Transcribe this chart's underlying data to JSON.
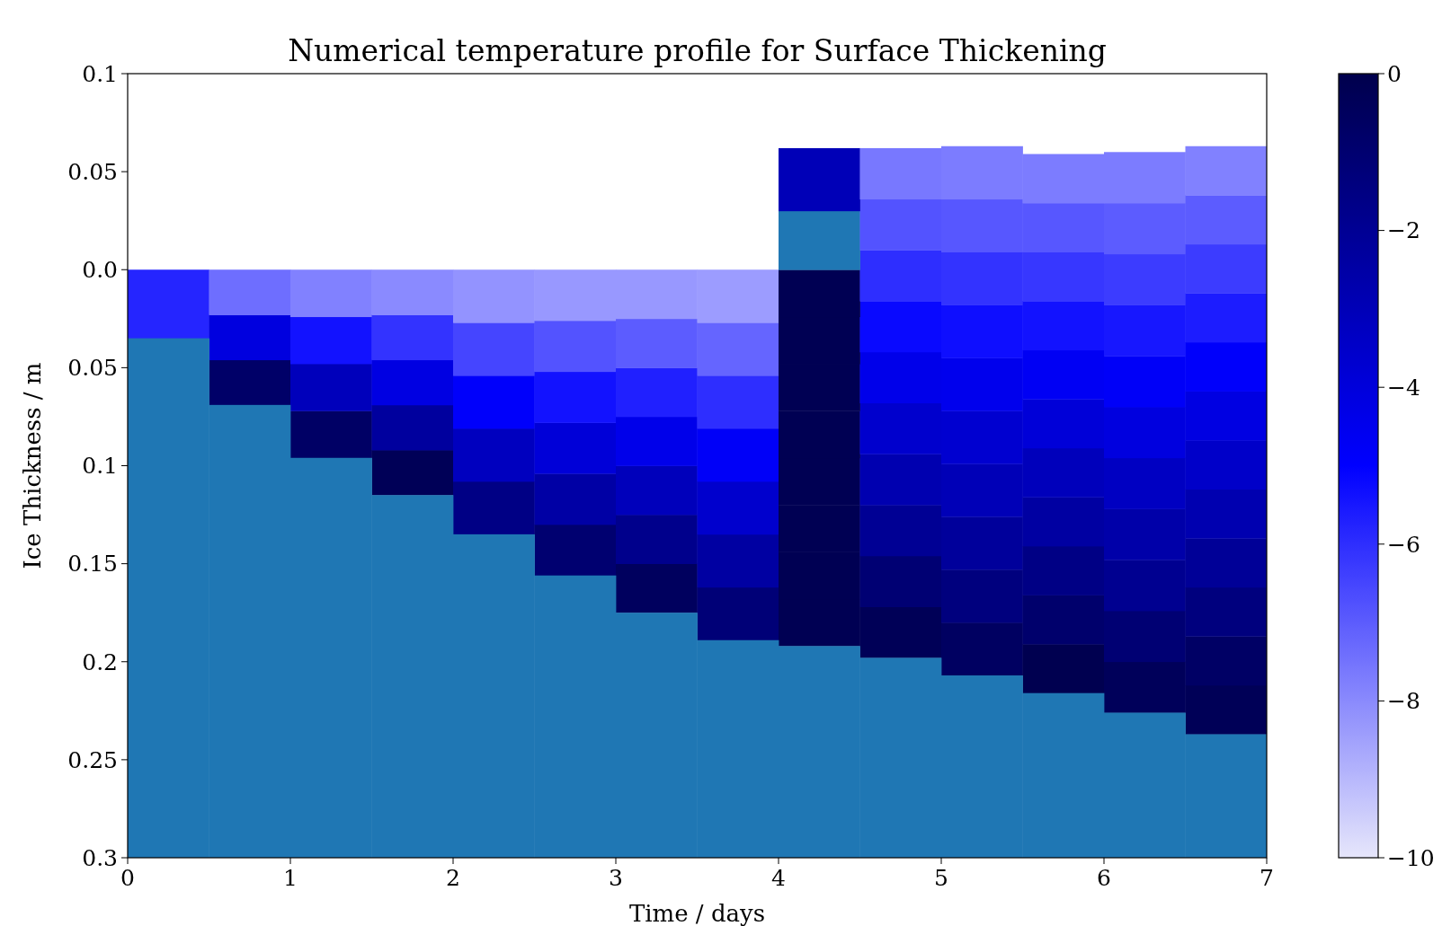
{
  "chart_data": {
    "type": "bar",
    "title": "Numerical temperature profile for Surface Thickening",
    "xlabel": "Time / days",
    "ylabel": "Ice Thickness / m",
    "grid": false,
    "xlim": [
      0,
      7
    ],
    "xticks": [
      0,
      1,
      2,
      3,
      4,
      5,
      6,
      7
    ],
    "ylim": [
      -0.3,
      0.1
    ],
    "yticks": [
      0.1,
      0.05,
      {
        "value": 0,
        "label": "0.0"
      },
      {
        "value": -0.05,
        "label": "0.05"
      },
      {
        "value": -0.1,
        "label": "0.1"
      },
      {
        "value": -0.15,
        "label": "0.15"
      },
      {
        "value": -0.2,
        "label": "0.2"
      },
      {
        "value": -0.25,
        "label": "0.25"
      },
      {
        "value": -0.3,
        "label": "0.3"
      }
    ],
    "clim": [
      -10,
      0
    ],
    "cticks": [
      0,
      {
        "value": -2,
        "label": "−2"
      },
      {
        "value": -4,
        "label": "−4"
      },
      {
        "value": -6,
        "label": "−6"
      },
      {
        "value": -8,
        "label": "−8"
      },
      {
        "value": -10,
        "label": "−10"
      }
    ],
    "x": [
      0.25,
      0.75,
      1.25,
      1.75,
      2.25,
      2.75,
      3.25,
      3.75,
      4.25,
      4.75,
      5.25,
      5.75,
      6.25,
      6.75
    ],
    "series": [
      {
        "base": [
          -0.035,
          -0.069,
          -0.096,
          -0.115,
          -0.135,
          -0.156,
          -0.175,
          -0.189,
          -0.192,
          -0.198,
          -0.207,
          -0.216,
          -0.226,
          -0.237
        ],
        "values": [
          0.035,
          0.023,
          0.024,
          0.023,
          0.027,
          0.026,
          0.025,
          0.027,
          0.024,
          0.026,
          0.027,
          0.025,
          0.026,
          0.025
        ],
        "colors": [
          "#2525ff",
          "#000068",
          "#000065",
          "#000057",
          "#000085",
          "#000070",
          "#00005e",
          "#000077",
          "#000053",
          "#000057",
          "#000061",
          "#000050",
          "#00005a",
          "#000057"
        ]
      },
      {
        "base": [
          null,
          -0.046,
          -0.072,
          -0.092,
          -0.108,
          -0.13,
          -0.15,
          -0.162,
          -0.168,
          -0.172,
          -0.18,
          -0.191,
          -0.2,
          -0.212
        ],
        "values": [
          null,
          0.023,
          0.024,
          0.023,
          0.027,
          0.026,
          0.025,
          0.027,
          0.024,
          0.026,
          0.027,
          0.025,
          0.026,
          0.025
        ],
        "colors": [
          null,
          "#0000df",
          "#0000bb",
          "#00009e",
          "#0000bf",
          "#0000a5",
          "#00008c",
          "#0000a2",
          "#000053",
          "#000073",
          "#00007e",
          "#00006c",
          "#000073",
          "#000065"
        ]
      },
      {
        "base": [
          null,
          -0.023,
          -0.048,
          -0.069,
          -0.081,
          -0.104,
          -0.125,
          -0.135,
          -0.144,
          -0.146,
          -0.153,
          -0.166,
          -0.174,
          -0.187
        ],
        "values": [
          null,
          0.023,
          0.024,
          0.023,
          0.027,
          0.026,
          0.025,
          0.027,
          0.024,
          0.026,
          0.027,
          0.025,
          0.026,
          0.025
        ],
        "colors": [
          null,
          "#6e6eff",
          "#1212ff",
          "#0000e2",
          "#0000fb",
          "#0000d8",
          "#0000bb",
          "#0000cd",
          "#000053",
          "#000094",
          "#00009b",
          "#000085",
          "#000090",
          "#00007e"
        ]
      },
      {
        "base": [
          null,
          null,
          -0.024,
          -0.046,
          -0.054,
          -0.078,
          -0.1,
          -0.108,
          -0.12,
          -0.12,
          -0.126,
          -0.141,
          -0.148,
          -0.162
        ],
        "values": [
          null,
          null,
          0.024,
          0.023,
          0.027,
          0.026,
          0.025,
          0.027,
          0.024,
          0.026,
          0.027,
          0.025,
          0.026,
          0.025
        ],
        "colors": [
          null,
          null,
          "#8181ff",
          "#3333ff",
          "#4545ff",
          "#1212ff",
          "#0000ea",
          "#0000f8",
          "#000053",
          "#0000b0",
          "#0000b7",
          "#0000a2",
          "#0000a9",
          "#000097"
        ]
      },
      {
        "base": [
          null,
          null,
          null,
          -0.023,
          -0.027,
          -0.052,
          -0.075,
          -0.081,
          -0.096,
          -0.094,
          -0.099,
          -0.116,
          -0.122,
          -0.137
        ],
        "values": [
          null,
          null,
          null,
          0.023,
          0.027,
          0.026,
          0.025,
          0.027,
          0.024,
          0.026,
          0.027,
          0.025,
          0.026,
          0.025
        ],
        "colors": [
          null,
          null,
          null,
          "#8a8aff",
          "#9393ff",
          "#5353ff",
          "#2020ff",
          "#2e2eff",
          "#000053",
          "#0000cd",
          "#0000d0",
          "#0000bb",
          "#0000c2",
          "#0000b0"
        ]
      },
      {
        "base": [
          null,
          null,
          null,
          null,
          null,
          -0.026,
          -0.05,
          -0.054,
          -0.072,
          -0.068,
          -0.072,
          -0.091,
          -0.096,
          -0.112
        ],
        "values": [
          null,
          null,
          null,
          null,
          null,
          0.026,
          0.025,
          0.027,
          0.024,
          0.026,
          0.027,
          0.025,
          0.026,
          0.025
        ],
        "colors": [
          null,
          null,
          null,
          null,
          null,
          "#9898ff",
          "#5c5cff",
          "#6565ff",
          "#000053",
          "#0000ea",
          "#0000ed",
          "#0000d8",
          "#0000df",
          "#0000c9"
        ]
      },
      {
        "base": [
          null,
          null,
          null,
          null,
          null,
          null,
          -0.025,
          -0.027,
          -0.048,
          -0.042,
          -0.045,
          -0.066,
          -0.07,
          -0.087
        ],
        "values": [
          null,
          null,
          null,
          null,
          null,
          null,
          0.025,
          0.027,
          0.024,
          0.026,
          0.027,
          0.025,
          0.026,
          0.025
        ],
        "colors": [
          null,
          null,
          null,
          null,
          null,
          null,
          "#9898ff",
          "#9c9cff",
          "#000053",
          "#0909ff",
          "#0e0eff",
          "#0000f4",
          "#0000f8",
          "#0000e2"
        ]
      },
      {
        "base": [
          null,
          null,
          null,
          null,
          null,
          null,
          null,
          null,
          -0.024,
          -0.016,
          -0.018,
          -0.041,
          -0.044,
          -0.062
        ],
        "values": [
          null,
          null,
          null,
          null,
          null,
          null,
          null,
          null,
          0.024,
          0.026,
          0.027,
          0.025,
          0.026,
          0.025
        ],
        "colors": [
          null,
          null,
          null,
          null,
          null,
          null,
          null,
          null,
          "#000053",
          "#2e2eff",
          "#3333ff",
          "#1212ff",
          "#1717ff",
          "#0000fb"
        ]
      },
      {
        "base": [
          null,
          null,
          null,
          null,
          null,
          null,
          null,
          null,
          0,
          0.01,
          0.009,
          -0.016,
          -0.018,
          -0.037
        ],
        "values": [
          null,
          null,
          null,
          null,
          null,
          null,
          null,
          null,
          0.03,
          0.026,
          0.027,
          0.025,
          0.026,
          0.025
        ],
        "colors": [
          null,
          null,
          null,
          null,
          null,
          null,
          null,
          null,
          "#1f77b4",
          "#5353ff",
          "#5757ff",
          "#3737ff",
          "#3c3cff",
          "#1c1cff"
        ]
      },
      {
        "base": [
          null,
          null,
          null,
          null,
          null,
          null,
          null,
          null,
          0.03,
          0.036,
          0.036,
          0.009,
          0.008,
          -0.012
        ],
        "values": [
          null,
          null,
          null,
          null,
          null,
          null,
          null,
          null,
          0.032,
          0.026,
          0.027,
          0.025,
          0.026,
          0.025
        ],
        "colors": [
          null,
          null,
          null,
          null,
          null,
          null,
          null,
          null,
          "#0000b7",
          "#7878ff",
          "#7c7cff",
          "#5757ff",
          "#5c5cff",
          "#3c3cff"
        ]
      },
      {
        "base": [
          null,
          null,
          null,
          null,
          null,
          null,
          null,
          null,
          null,
          null,
          null,
          0.034,
          0.034,
          0.013
        ],
        "values": [
          null,
          null,
          null,
          null,
          null,
          null,
          null,
          null,
          null,
          null,
          null,
          0.025,
          0.026,
          0.025
        ],
        "colors": [
          null,
          null,
          null,
          null,
          null,
          null,
          null,
          null,
          null,
          null,
          null,
          "#7c7cff",
          "#7c7cff",
          "#5c5cff"
        ]
      },
      {
        "base": [
          null,
          null,
          null,
          null,
          null,
          null,
          null,
          null,
          null,
          null,
          null,
          null,
          null,
          0.038
        ],
        "values": [
          null,
          null,
          null,
          null,
          null,
          null,
          null,
          null,
          null,
          null,
          null,
          null,
          null,
          0.025
        ],
        "colors": [
          null,
          null,
          null,
          null,
          null,
          null,
          null,
          null,
          null,
          null,
          null,
          null,
          null,
          "#8181ff"
        ]
      },
      {
        "color": "#1f77b4",
        "base": [
          -0.3,
          -0.3,
          -0.3,
          -0.3,
          -0.3,
          -0.3,
          -0.3,
          -0.3,
          -0.3,
          -0.3,
          -0.3,
          -0.3,
          -0.3,
          -0.3
        ],
        "values": [
          0.265,
          0.231,
          0.204,
          0.185,
          0.165,
          0.144,
          0.125,
          0.111,
          0.108,
          0.102,
          0.093,
          0.084,
          0.074,
          0.063
        ]
      }
    ]
  }
}
